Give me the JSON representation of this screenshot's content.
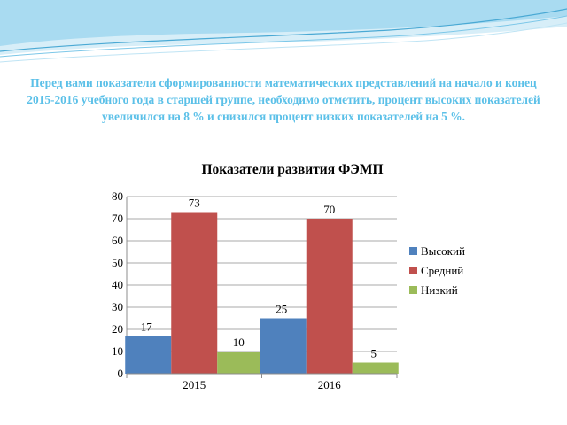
{
  "heading": "Перед вами показатели сформированности математических представлений на начало и конец 2015-2016 учебного года в старшей группе,  необходимо отметить, процент высоких показателей увеличился на 8 % и снизился процент низких показателей на 5 %.",
  "colors": {
    "heading": "#5bc0e8",
    "decor_dark": "#4aa9d4",
    "decor_light": "#bfe4f4",
    "series_high": "#4f81bd",
    "series_mid": "#c0504d",
    "series_low": "#9bbb59"
  },
  "chart_data": {
    "type": "bar",
    "title": "Показатели развития ФЭМП",
    "categories": [
      "2015",
      "2016"
    ],
    "series": [
      {
        "name": "Высокий",
        "values": [
          17,
          25
        ]
      },
      {
        "name": "Средний",
        "values": [
          73,
          70
        ]
      },
      {
        "name": "Низкий",
        "values": [
          10,
          5
        ]
      }
    ],
    "ylim": [
      0,
      80
    ],
    "yticks": [
      0,
      10,
      20,
      30,
      40,
      50,
      60,
      70,
      80
    ],
    "grid": true,
    "legend": "right",
    "data_labels": true
  }
}
